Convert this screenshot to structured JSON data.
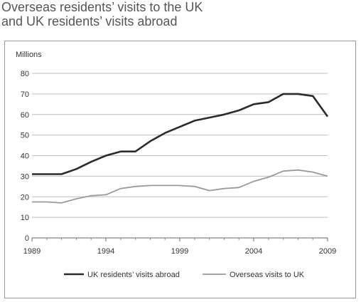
{
  "title_lines": [
    "Overseas residents’ visits to the UK",
    "and UK residents’ visits abroad"
  ],
  "chart_data": {
    "type": "line",
    "title": "Overseas residents’ visits to the UK and UK residents’ visits abroad",
    "ylabel": "Millions",
    "xlabel": "",
    "xlim": [
      1989,
      2009
    ],
    "ylim": [
      0,
      80
    ],
    "x_ticks": [
      1989,
      1994,
      1999,
      2004,
      2009
    ],
    "y_ticks": [
      0,
      10,
      20,
      30,
      40,
      50,
      60,
      70,
      80
    ],
    "grid": "horizontal",
    "legend_position": "bottom",
    "series": [
      {
        "name": "UK residents’ visits abroad",
        "color": "#2b2b2b",
        "points": [
          [
            1989,
            31
          ],
          [
            1990,
            31
          ],
          [
            1991,
            31
          ],
          [
            1992,
            33.5
          ],
          [
            1993,
            37
          ],
          [
            1994,
            40
          ],
          [
            1995,
            42
          ],
          [
            1996,
            42
          ],
          [
            1997,
            47
          ],
          [
            1998,
            51
          ],
          [
            1999,
            54
          ],
          [
            2000,
            57
          ],
          [
            2001,
            58.5
          ],
          [
            2002,
            60
          ],
          [
            2003,
            62
          ],
          [
            2004,
            65
          ],
          [
            2005,
            66
          ],
          [
            2006,
            70
          ],
          [
            2007,
            70
          ],
          [
            2008,
            69
          ],
          [
            2009,
            59
          ]
        ]
      },
      {
        "name": "Overseas visits to UK",
        "color": "#9a9a9a",
        "points": [
          [
            1989,
            17.5
          ],
          [
            1990,
            17.5
          ],
          [
            1991,
            17
          ],
          [
            1992,
            19
          ],
          [
            1993,
            20.5
          ],
          [
            1994,
            21
          ],
          [
            1995,
            24
          ],
          [
            1996,
            25
          ],
          [
            1997,
            25.5
          ],
          [
            1998,
            25.5
          ],
          [
            1999,
            25.5
          ],
          [
            2000,
            25
          ],
          [
            2001,
            23
          ],
          [
            2002,
            24
          ],
          [
            2003,
            24.5
          ],
          [
            2004,
            27.5
          ],
          [
            2005,
            29.5
          ],
          [
            2006,
            32.5
          ],
          [
            2007,
            33
          ],
          [
            2008,
            32
          ],
          [
            2009,
            30
          ]
        ]
      }
    ]
  }
}
